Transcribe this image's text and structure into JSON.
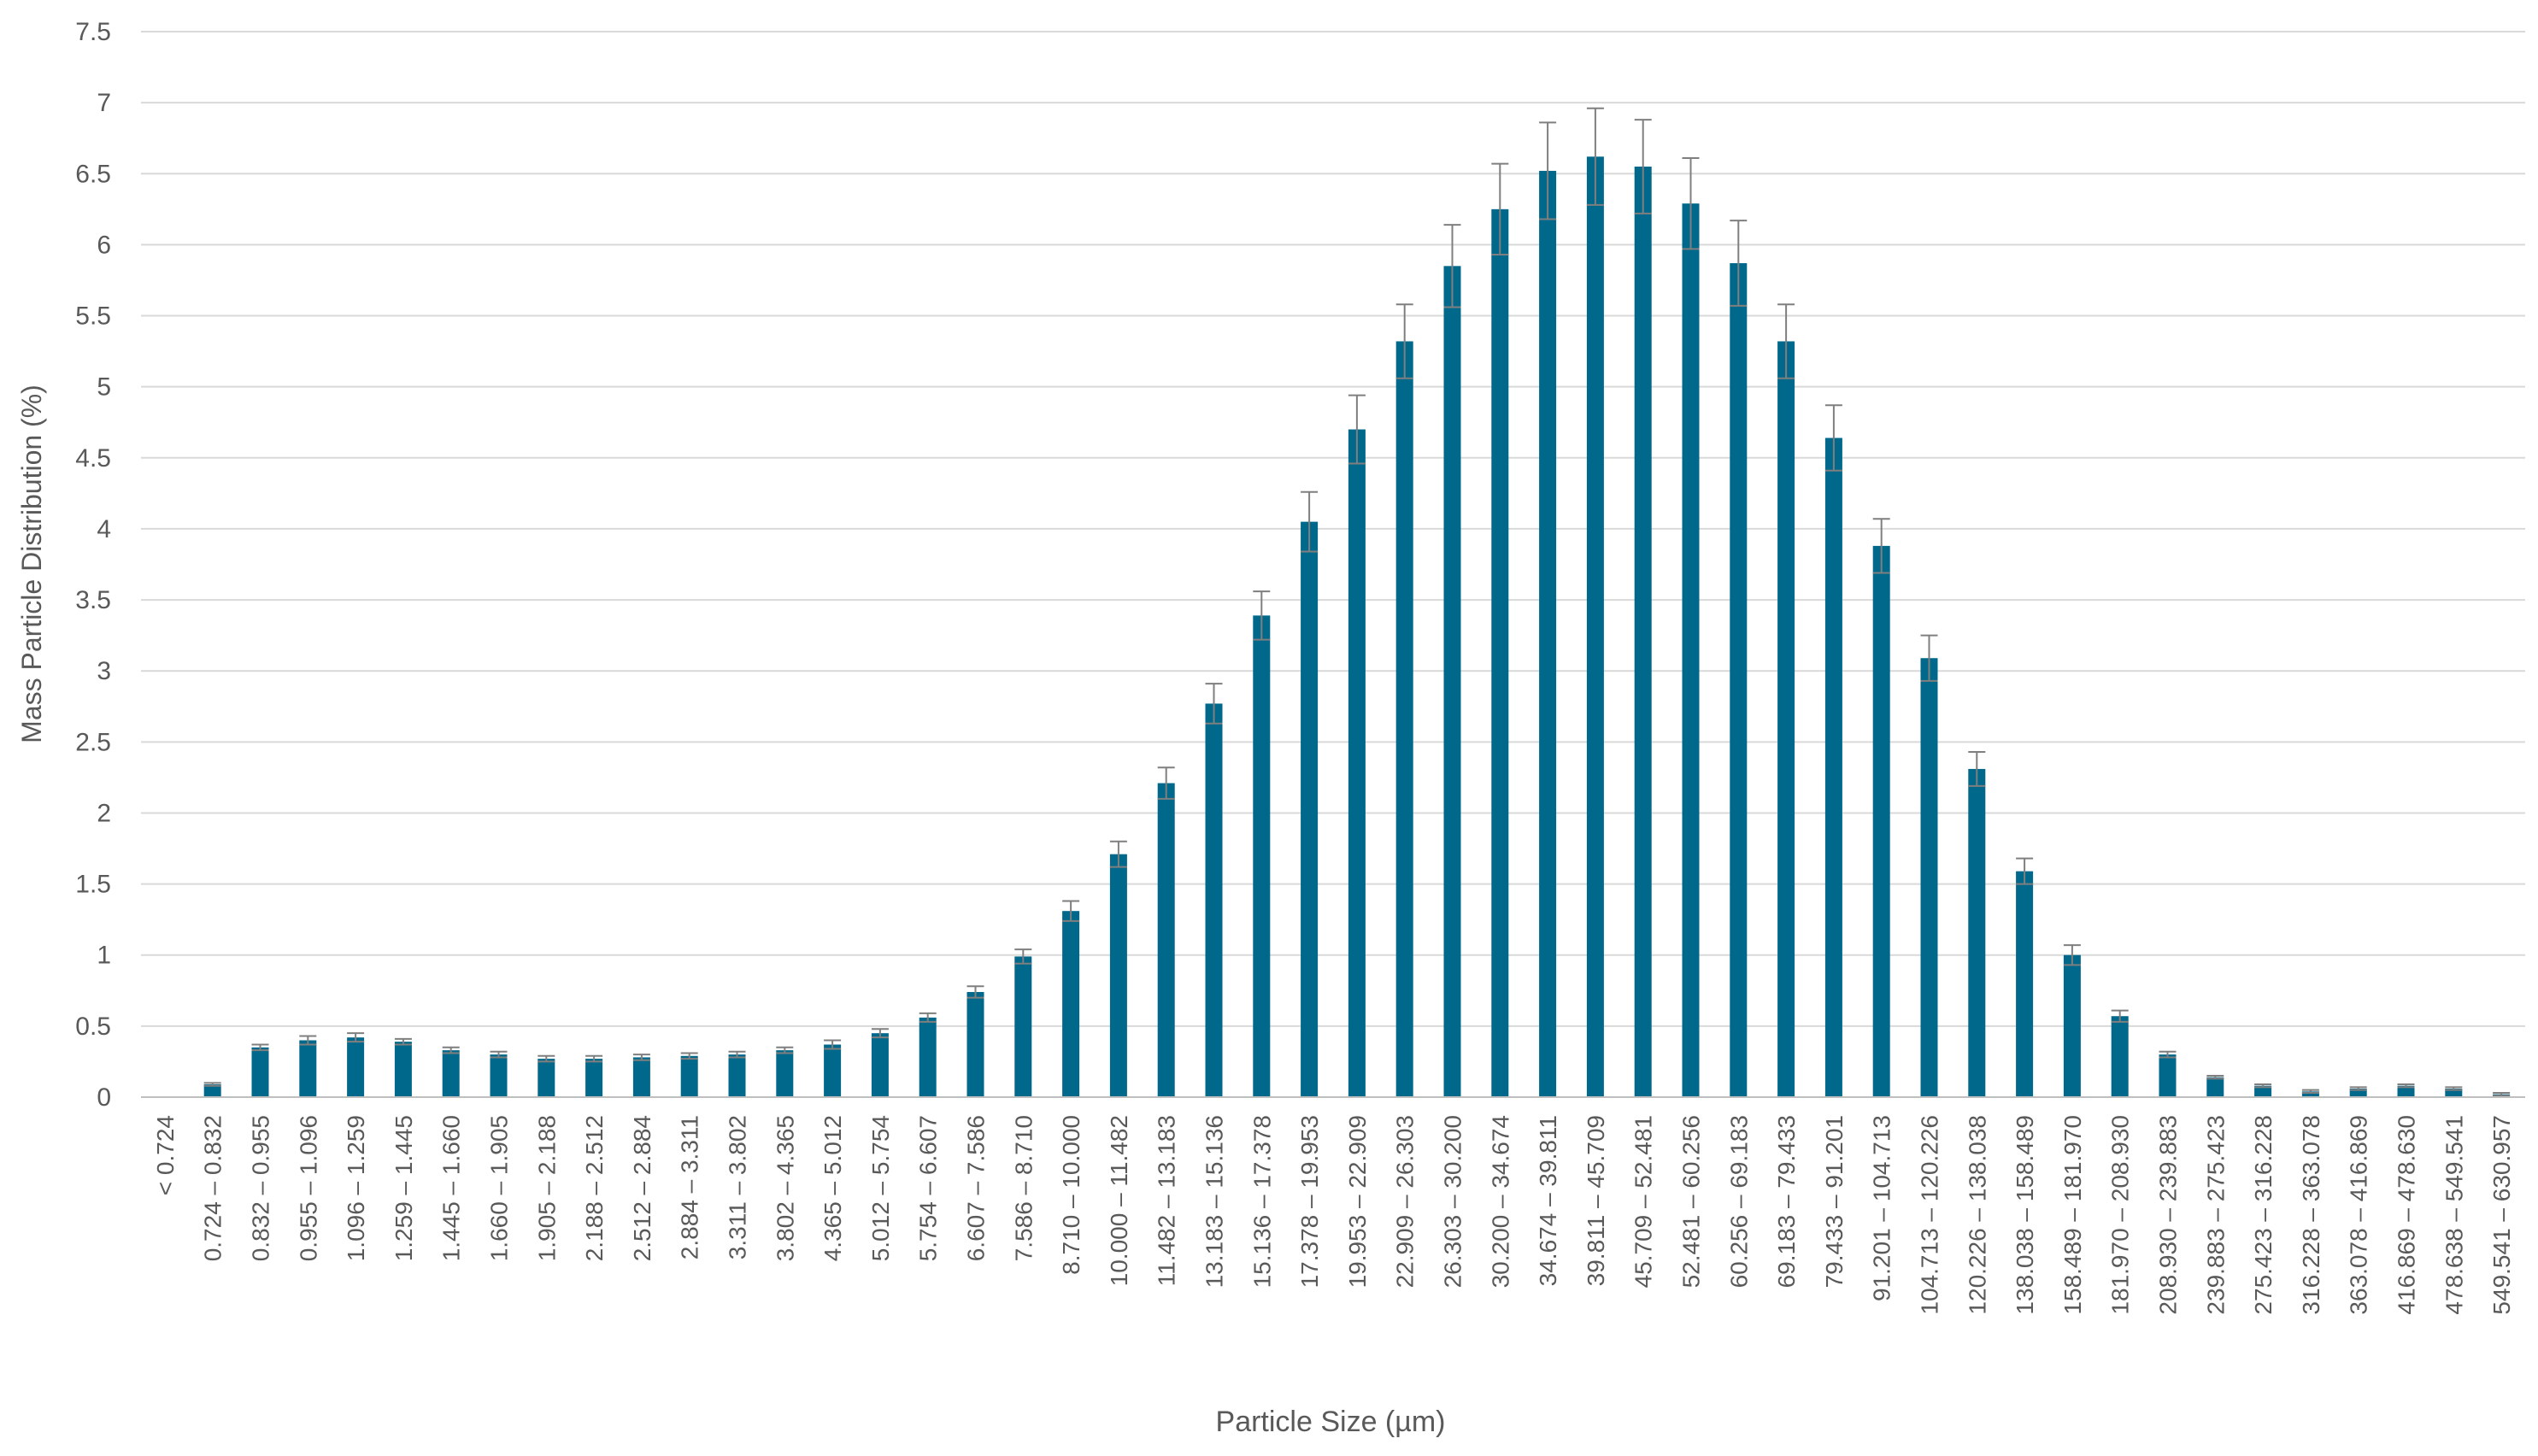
{
  "chart_data": {
    "type": "bar",
    "title": "",
    "xlabel": "Particle Size (µm)",
    "ylabel": "Mass Particle Distribution (%)",
    "ylim": [
      0,
      7.5
    ],
    "yticks": [
      "0",
      "0.5",
      "1",
      "1.5",
      "2",
      "2.5",
      "3",
      "3.5",
      "4",
      "4.5",
      "5",
      "5.5",
      "6",
      "6.5",
      "7",
      "7.5"
    ],
    "grid": true,
    "legend": "none",
    "bar_color": "#00688A",
    "error_bar_color": "#7f7f7f",
    "categories": [
      "< 0.724",
      "0.724 – 0.832",
      "0.832 – 0.955",
      "0.955 – 1.096",
      "1.096 – 1.259",
      "1.259 – 1.445",
      "1.445 – 1.660",
      "1.660 – 1.905",
      "1.905 – 2.188",
      "2.188 – 2.512",
      "2.512 – 2.884",
      "2.884 – 3.311",
      "3.311 – 3.802",
      "3.802 – 4.365",
      "4.365 – 5.012",
      "5.012 – 5.754",
      "5.754 – 6.607",
      "6.607 – 7.586",
      "7.586 – 8.710",
      "8.710 – 10.000",
      "10.000 – 11.482",
      "11.482 – 13.183",
      "13.183 – 15.136",
      "15.136 – 17.378",
      "17.378 – 19.953",
      "19.953 – 22.909",
      "22.909 – 26.303",
      "26.303 – 30.200",
      "30.200 – 34.674",
      "34.674 – 39.811",
      "39.811 – 45.709",
      "45.709 – 52.481",
      "52.481 – 60.256",
      "60.256 – 69.183",
      "69.183 – 79.433",
      "79.433 – 91.201",
      "91.201 – 104.713",
      "104.713 – 120.226",
      "120.226 – 138.038",
      "138.038 – 158.489",
      "158.489 – 181.970",
      "181.970 – 208.930",
      "208.930 – 239.883",
      "239.883 – 275.423",
      "275.423 – 316.228",
      "316.228 – 363.078",
      "363.078 – 416.869",
      "416.869 – 478.630",
      "478.638 – 549.541",
      "549.541 – 630.957"
    ],
    "values": [
      0,
      0.09,
      0.35,
      0.4,
      0.42,
      0.39,
      0.33,
      0.3,
      0.27,
      0.27,
      0.28,
      0.29,
      0.3,
      0.33,
      0.37,
      0.45,
      0.56,
      0.74,
      0.99,
      1.31,
      1.71,
      2.21,
      2.77,
      3.39,
      4.05,
      4.7,
      5.32,
      5.85,
      6.25,
      6.52,
      6.62,
      6.55,
      6.29,
      5.87,
      5.32,
      4.64,
      3.88,
      3.09,
      2.31,
      1.59,
      1.0,
      0.57,
      0.3,
      0.14,
      0.08,
      0.04,
      0.06,
      0.08,
      0.06,
      0.02
    ],
    "errors": [
      0,
      0.01,
      0.02,
      0.03,
      0.03,
      0.02,
      0.02,
      0.02,
      0.02,
      0.02,
      0.02,
      0.02,
      0.02,
      0.02,
      0.03,
      0.03,
      0.03,
      0.04,
      0.05,
      0.07,
      0.09,
      0.11,
      0.14,
      0.17,
      0.21,
      0.24,
      0.26,
      0.29,
      0.32,
      0.34,
      0.34,
      0.33,
      0.32,
      0.3,
      0.26,
      0.23,
      0.19,
      0.16,
      0.12,
      0.09,
      0.07,
      0.04,
      0.02,
      0.01,
      0.01,
      0.01,
      0.01,
      0.01,
      0.01,
      0.01
    ]
  }
}
